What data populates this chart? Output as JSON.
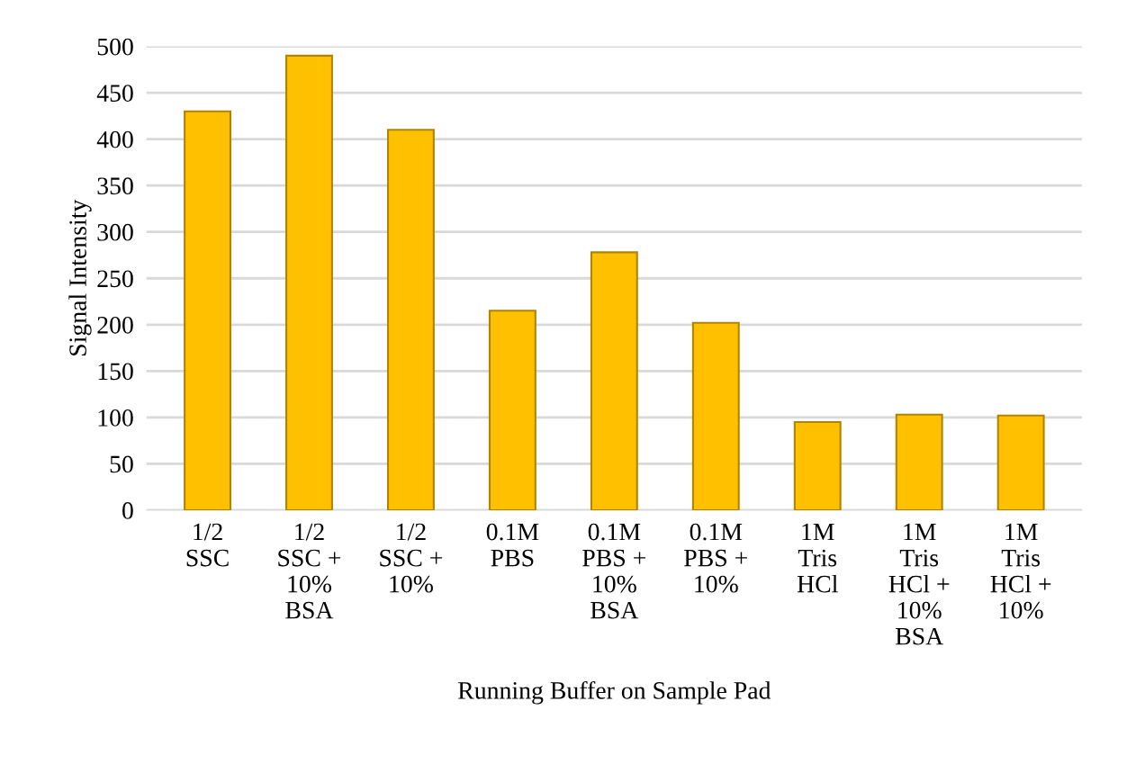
{
  "chart_data": {
    "type": "bar",
    "xlabel": "Running Buffer on Sample Pad",
    "ylabel": "Signal Intensity",
    "categories": [
      "1/2\nSSC",
      "1/2\nSSC +\n10%\nBSA",
      "1/2\nSSC +\n10%",
      "0.1M\nPBS",
      "0.1M\nPBS +\n10%\nBSA",
      "0.1M\nPBS +\n10%",
      "1M\nTris\nHCl",
      "1M\nTris\nHCl +\n10%\nBSA",
      "1M\nTris\nHCl +\n10%"
    ],
    "values": [
      430,
      490,
      410,
      215,
      278,
      202,
      95,
      103,
      102
    ],
    "color": "#ffc000",
    "ylim": [
      0,
      500
    ],
    "yticks": [
      0,
      50,
      100,
      150,
      200,
      250,
      300,
      350,
      400,
      450,
      500
    ],
    "grid": "y"
  }
}
